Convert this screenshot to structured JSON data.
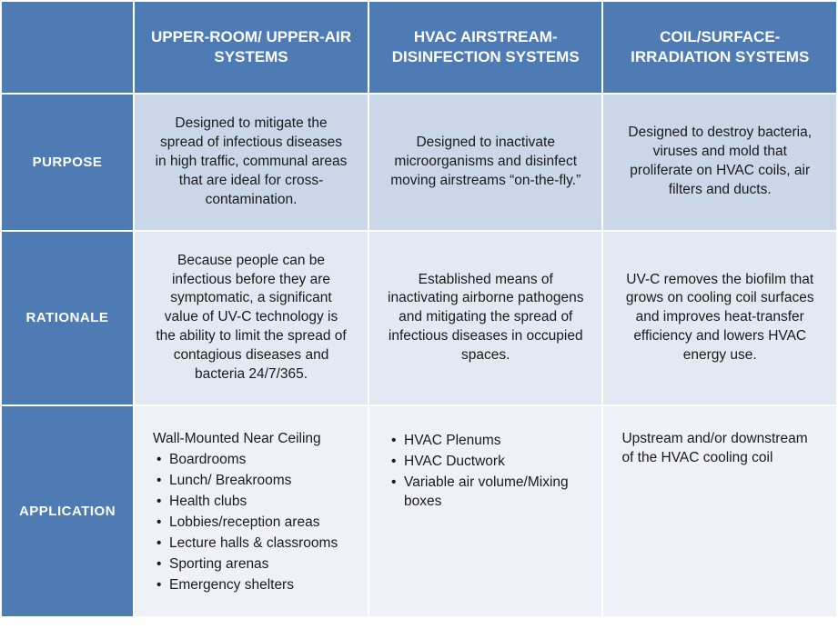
{
  "colors": {
    "header_bg": "#4e7bb3",
    "header_text": "#ffffff",
    "row_light": "#cad7e8",
    "row_lighter": "#e2e9f2",
    "row_lightest": "#eef2f8",
    "body_text": "#1a1a1a"
  },
  "columns": [
    "UPPER-ROOM/ UPPER-AIR SYSTEMS",
    "HVAC AIRSTREAM-DISINFECTION SYSTEMS",
    "COIL/SURFACE-IRRADIATION SYSTEMS"
  ],
  "rows": {
    "purpose": {
      "label": "PURPOSE",
      "cells": [
        "Designed to mitigate the spread of infectious diseases in high traffic, communal areas that are ideal for cross-contamination.",
        "Designed to inactivate microorganisms and disinfect moving airstreams “on-the-fly.”",
        "Designed to destroy bacteria, viruses and mold that proliferate on HVAC coils, air filters and ducts."
      ]
    },
    "rationale": {
      "label": "RATIONALE",
      "cells": [
        "Because people can be infectious before they are symptomatic, a significant value of UV-C technology is the ability to limit the spread of contagious diseases and bacteria 24/7/365.",
        "Established means of inactivating airborne pathogens and mitigating the spread of infectious diseases in occupied spaces.",
        "UV-C removes the biofilm that grows on cooling coil surfaces and improves heat-transfer efficiency and lowers HVAC energy use."
      ]
    },
    "application": {
      "label": "APPLICATION",
      "col1": {
        "heading": "Wall-Mounted Near Ceiling",
        "items": [
          "Boardrooms",
          "Lunch/ Breakrooms",
          "Health clubs",
          "Lobbies/reception areas",
          "Lecture halls & classrooms",
          "Sporting arenas",
          "Emergency shelters"
        ]
      },
      "col2": {
        "items": [
          "HVAC Plenums",
          "HVAC Ductwork",
          "Variable air volume/Mixing boxes"
        ]
      },
      "col3": {
        "text": "Upstream and/or downstream of the HVAC cooling coil"
      }
    }
  }
}
